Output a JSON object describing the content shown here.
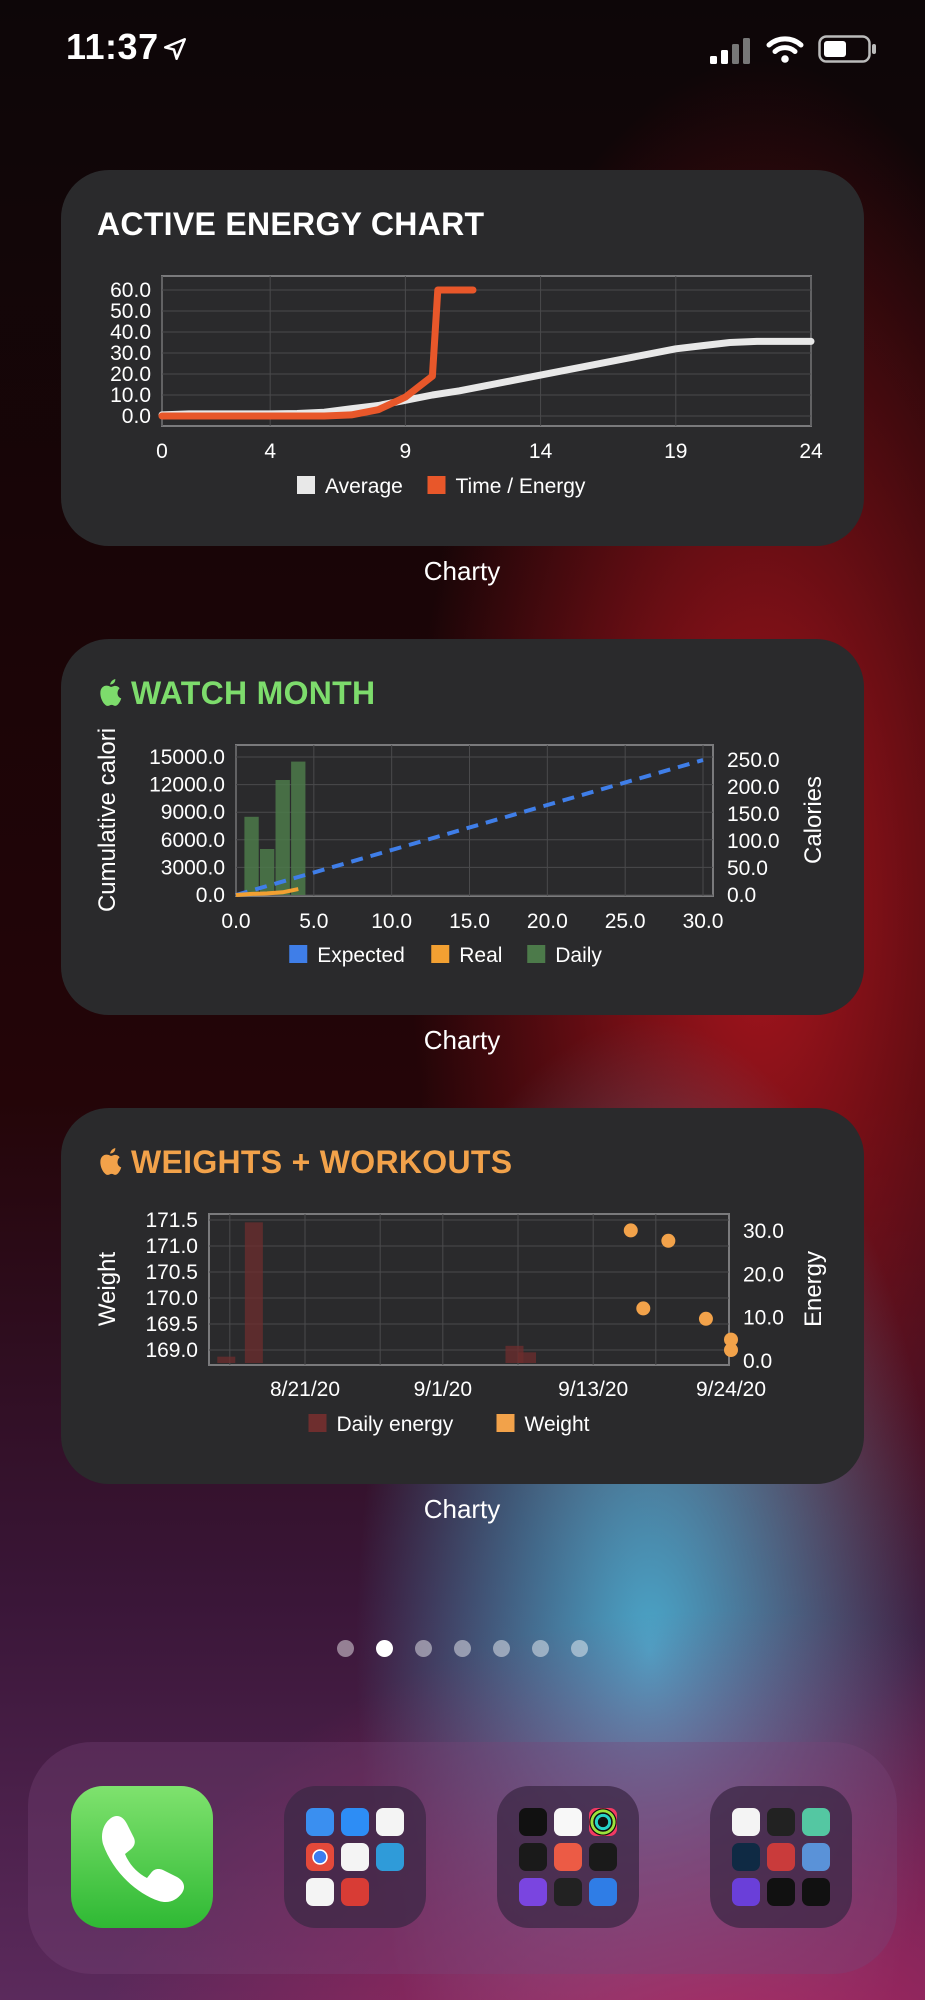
{
  "status": {
    "time": "11:37",
    "signal_bars": 2,
    "battery_level": 0.55
  },
  "widgets": [
    {
      "title": "ACTIVE ENERGY CHART",
      "title_color": "#ffffff",
      "apple_logo": false,
      "label": "Charty",
      "chart_data": {
        "type": "line",
        "x_ticks": [
          "0",
          "4",
          "9",
          "14",
          "19",
          "24"
        ],
        "y_ticks": [
          "0.0",
          "10.0",
          "20.0",
          "30.0",
          "40.0",
          "50.0",
          "60.0"
        ],
        "xlim": [
          0,
          24
        ],
        "ylim": [
          0,
          60
        ],
        "series": [
          {
            "name": "Average",
            "color": "#e8e8e8",
            "x": [
              0,
              1,
              2,
              3,
              4,
              5,
              6,
              7,
              8,
              9,
              10,
              11,
              12,
              13,
              14,
              15,
              16,
              17,
              18,
              19,
              20,
              21,
              22,
              23,
              24
            ],
            "y": [
              0.5,
              1,
              1,
              1,
              1,
              1.2,
              1.8,
              3.5,
              5,
              7.5,
              10,
              12,
              14.5,
              17,
              19.5,
              22,
              24.5,
              27,
              29.5,
              32,
              33.5,
              35,
              35.5,
              35.5,
              35.5
            ]
          },
          {
            "name": "Time / Energy",
            "color": "#e8572a",
            "x": [
              0,
              1,
              2,
              3,
              4,
              5,
              6,
              7,
              8,
              9,
              10,
              10.2,
              11,
              11.5
            ],
            "y": [
              0,
              0,
              0,
              0,
              0,
              0,
              0,
              0.5,
              3,
              9,
              19,
              60,
              60,
              60
            ]
          }
        ],
        "legend": [
          "Average",
          "Time / Energy"
        ],
        "legend_position": "bottom"
      }
    },
    {
      "title": "WATCH MONTH",
      "title_color": "#7ddc6c",
      "apple_logo": true,
      "label": "Charty",
      "chart_data": {
        "type": "bar",
        "left_axis_label": "Cumulative calori",
        "right_axis_label": "Calories",
        "x_ticks": [
          "0.0",
          "5.0",
          "10.0",
          "15.0",
          "20.0",
          "25.0",
          "30.0"
        ],
        "y_ticks_left": [
          "0.0",
          "3000.0",
          "6000.0",
          "9000.0",
          "12000.0",
          "15000.0"
        ],
        "y_ticks_right": [
          "0.0",
          "50.0",
          "100.0",
          "150.0",
          "200.0",
          "250.0"
        ],
        "xlim": [
          0,
          30
        ],
        "ylim_left": [
          0,
          15000
        ],
        "ylim_right": [
          0,
          250
        ],
        "series": [
          {
            "name": "Expected",
            "color": "#3f7ee8",
            "style": "dashed",
            "axis": "right",
            "x": [
              0,
              30
            ],
            "y": [
              0,
              250
            ]
          },
          {
            "name": "Real",
            "color": "#f2a032",
            "style": "solid",
            "axis": "right",
            "x": [
              0,
              1,
              2,
              3,
              4
            ],
            "y": [
              0,
              2,
              3,
              5,
              11
            ]
          },
          {
            "name": "Daily",
            "color": "#4c7a4a",
            "style": "bar",
            "axis": "left",
            "x": [
              1,
              2,
              3,
              4
            ],
            "y": [
              8500,
              5000,
              12500,
              14500
            ]
          }
        ],
        "legend": [
          "Expected",
          "Real",
          "Daily"
        ],
        "legend_position": "bottom"
      }
    },
    {
      "title": "WEIGHTS + WORKOUTS",
      "title_color": "#f2a24a",
      "apple_logo": true,
      "label": "Charty",
      "chart_data": {
        "type": "scatter",
        "left_axis_label": "Weight",
        "right_axis_label": "Energy",
        "x_ticks": [
          "8/21/20",
          "9/1/20",
          "9/13/20",
          "9/24/20"
        ],
        "y_ticks_left": [
          "169.0",
          "169.5",
          "170.0",
          "170.5",
          "171.0",
          "171.5"
        ],
        "y_ticks_right": [
          "0.0",
          "10.0",
          "20.0",
          "30.0"
        ],
        "ylim_left": [
          169.0,
          171.5
        ],
        "ylim_right": [
          0,
          30
        ],
        "series": [
          {
            "name": "Daily energy",
            "color": "#6e2e2e",
            "style": "bar",
            "axis": "right",
            "x": [
              -6,
              -6,
              0,
              16,
              16,
              17
            ],
            "y": [
              1,
              1,
              32,
              3.5,
              3.5,
              2
            ]
          },
          {
            "name": "Weight",
            "color": "#f2a24a",
            "style": "points",
            "axis": "left",
            "x": [
              26,
              29,
              27,
              32,
              34,
              38
            ],
            "y": [
              171.3,
              171.1,
              169.8,
              169.6,
              169.0,
              169.2
            ]
          }
        ],
        "legend": [
          "Daily energy",
          "Weight"
        ],
        "legend_position": "bottom"
      }
    }
  ],
  "page_dots": {
    "count": 7,
    "active": 1
  },
  "dock": {
    "apps": [
      "phone",
      "folder-google",
      "folder-health",
      "folder-fitness"
    ]
  }
}
